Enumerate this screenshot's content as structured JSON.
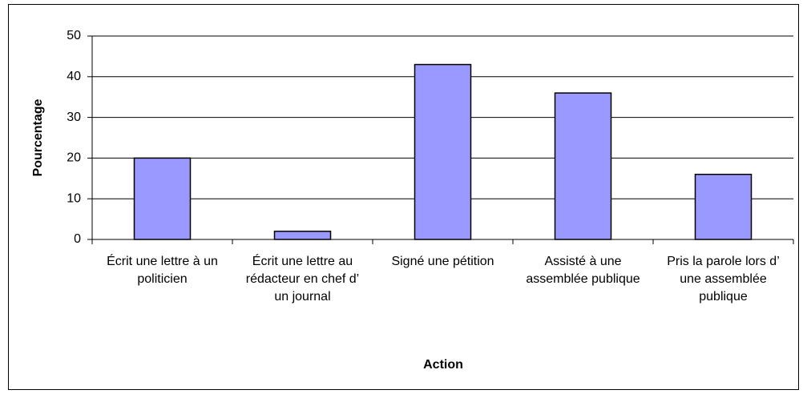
{
  "chart_data": {
    "type": "bar",
    "categories": [
      "Écrit une lettre à un politicien",
      "Écrit une lettre au rédacteur en chef d’ un journal",
      "Signé une pétition",
      "Assisté à une assemblée publique",
      "Pris la parole lors d’ une assemblée publique"
    ],
    "values": [
      20,
      2,
      43,
      36,
      16
    ],
    "color": "#9999ff",
    "xlabel": "Action",
    "ylabel": "Pourcentage",
    "ylim": [
      0,
      50
    ],
    "yticks": [
      0,
      10,
      20,
      30,
      40,
      50
    ],
    "grid": true
  }
}
